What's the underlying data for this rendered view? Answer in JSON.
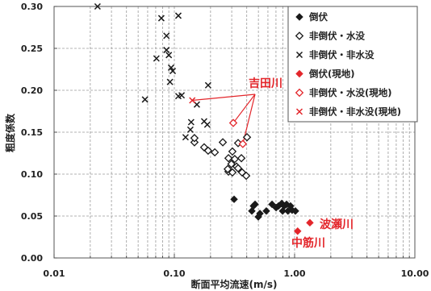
{
  "chart_data": {
    "type": "scatter",
    "xlabel": "断面平均流速(m/s)",
    "ylabel": "粗度係数",
    "x_scale": "log",
    "xlim": [
      0.01,
      10
    ],
    "ylim": [
      0,
      0.3
    ],
    "x_tick_labels": [
      "0.01",
      "0.10",
      "1.00",
      "10.00"
    ],
    "y_tick_labels": [
      "0.00",
      "0.05",
      "0.10",
      "0.15",
      "0.20",
      "0.25",
      "0.30"
    ],
    "grid": true,
    "legend_position": "top-right",
    "series": [
      {
        "name": "倒伏",
        "marker": "filled-diamond",
        "color": "#1a1a1a",
        "points": [
          [
            0.314,
            0.07
          ],
          [
            0.469,
            0.064
          ],
          [
            0.455,
            0.062
          ],
          [
            0.441,
            0.056
          ],
          [
            0.499,
            0.049
          ],
          [
            0.515,
            0.053
          ],
          [
            0.582,
            0.056
          ],
          [
            0.649,
            0.064
          ],
          [
            0.702,
            0.06
          ],
          [
            0.735,
            0.062
          ],
          [
            0.782,
            0.065
          ],
          [
            0.82,
            0.062
          ],
          [
            0.857,
            0.064
          ],
          [
            0.88,
            0.056
          ],
          [
            0.795,
            0.056
          ],
          [
            0.925,
            0.062
          ],
          [
            0.954,
            0.057
          ],
          [
            1.016,
            0.056
          ]
        ]
      },
      {
        "name": "非倒伏・水没",
        "marker": "open-diamond",
        "color": "#1a1a1a",
        "points": [
          [
            0.147,
            0.138
          ],
          [
            0.147,
            0.143
          ],
          [
            0.177,
            0.132
          ],
          [
            0.191,
            0.128
          ],
          [
            0.217,
            0.126
          ],
          [
            0.253,
            0.138
          ],
          [
            0.282,
            0.103
          ],
          [
            0.282,
            0.119
          ],
          [
            0.304,
            0.127
          ],
          [
            0.318,
            0.118
          ],
          [
            0.339,
            0.137
          ],
          [
            0.361,
            0.119
          ],
          [
            0.304,
            0.102
          ],
          [
            0.329,
            0.109
          ],
          [
            0.366,
            0.102
          ],
          [
            0.402,
            0.144
          ],
          [
            0.396,
            0.098
          ],
          [
            0.278,
            0.106
          ],
          [
            0.298,
            0.112
          ],
          [
            0.339,
            0.107
          ]
        ]
      },
      {
        "name": "非倒伏・非水没",
        "marker": "cross",
        "color": "#1a1a1a",
        "points": [
          [
            0.023,
            0.3
          ],
          [
            0.078,
            0.286
          ],
          [
            0.108,
            0.289
          ],
          [
            0.086,
            0.265
          ],
          [
            0.071,
            0.238
          ],
          [
            0.086,
            0.248
          ],
          [
            0.09,
            0.242
          ],
          [
            0.094,
            0.227
          ],
          [
            0.097,
            0.223
          ],
          [
            0.092,
            0.21
          ],
          [
            0.057,
            0.189
          ],
          [
            0.108,
            0.193
          ],
          [
            0.115,
            0.194
          ],
          [
            0.154,
            0.183
          ],
          [
            0.191,
            0.206
          ],
          [
            0.124,
            0.144
          ],
          [
            0.136,
            0.153
          ],
          [
            0.138,
            0.162
          ],
          [
            0.177,
            0.163
          ],
          [
            0.188,
            0.159
          ]
        ]
      },
      {
        "name": "倒伏(現地)",
        "marker": "filled-diamond",
        "color": "#e3262b",
        "points": [
          [
            1.34,
            0.042
          ],
          [
            1.06,
            0.032
          ]
        ]
      },
      {
        "name": "非倒伏・水没(現地)",
        "marker": "open-diamond",
        "color": "#e3262b",
        "points": [
          [
            0.309,
            0.161
          ],
          [
            0.371,
            0.136
          ]
        ]
      },
      {
        "name": "非倒伏・非水没(現地)",
        "marker": "cross",
        "color": "#e3262b",
        "points": [
          [
            0.141,
            0.188
          ]
        ]
      }
    ],
    "annotations": [
      {
        "text": "吉田川",
        "color": "#e3262b",
        "points": [
          [
            0.141,
            0.188
          ],
          [
            0.309,
            0.161
          ],
          [
            0.371,
            0.136
          ]
        ]
      },
      {
        "text": "波瀬川",
        "color": "#e3262b",
        "points": [
          [
            1.34,
            0.042
          ]
        ]
      },
      {
        "text": "中筋川",
        "color": "#e3262b",
        "points": [
          [
            1.06,
            0.032
          ]
        ]
      }
    ]
  }
}
